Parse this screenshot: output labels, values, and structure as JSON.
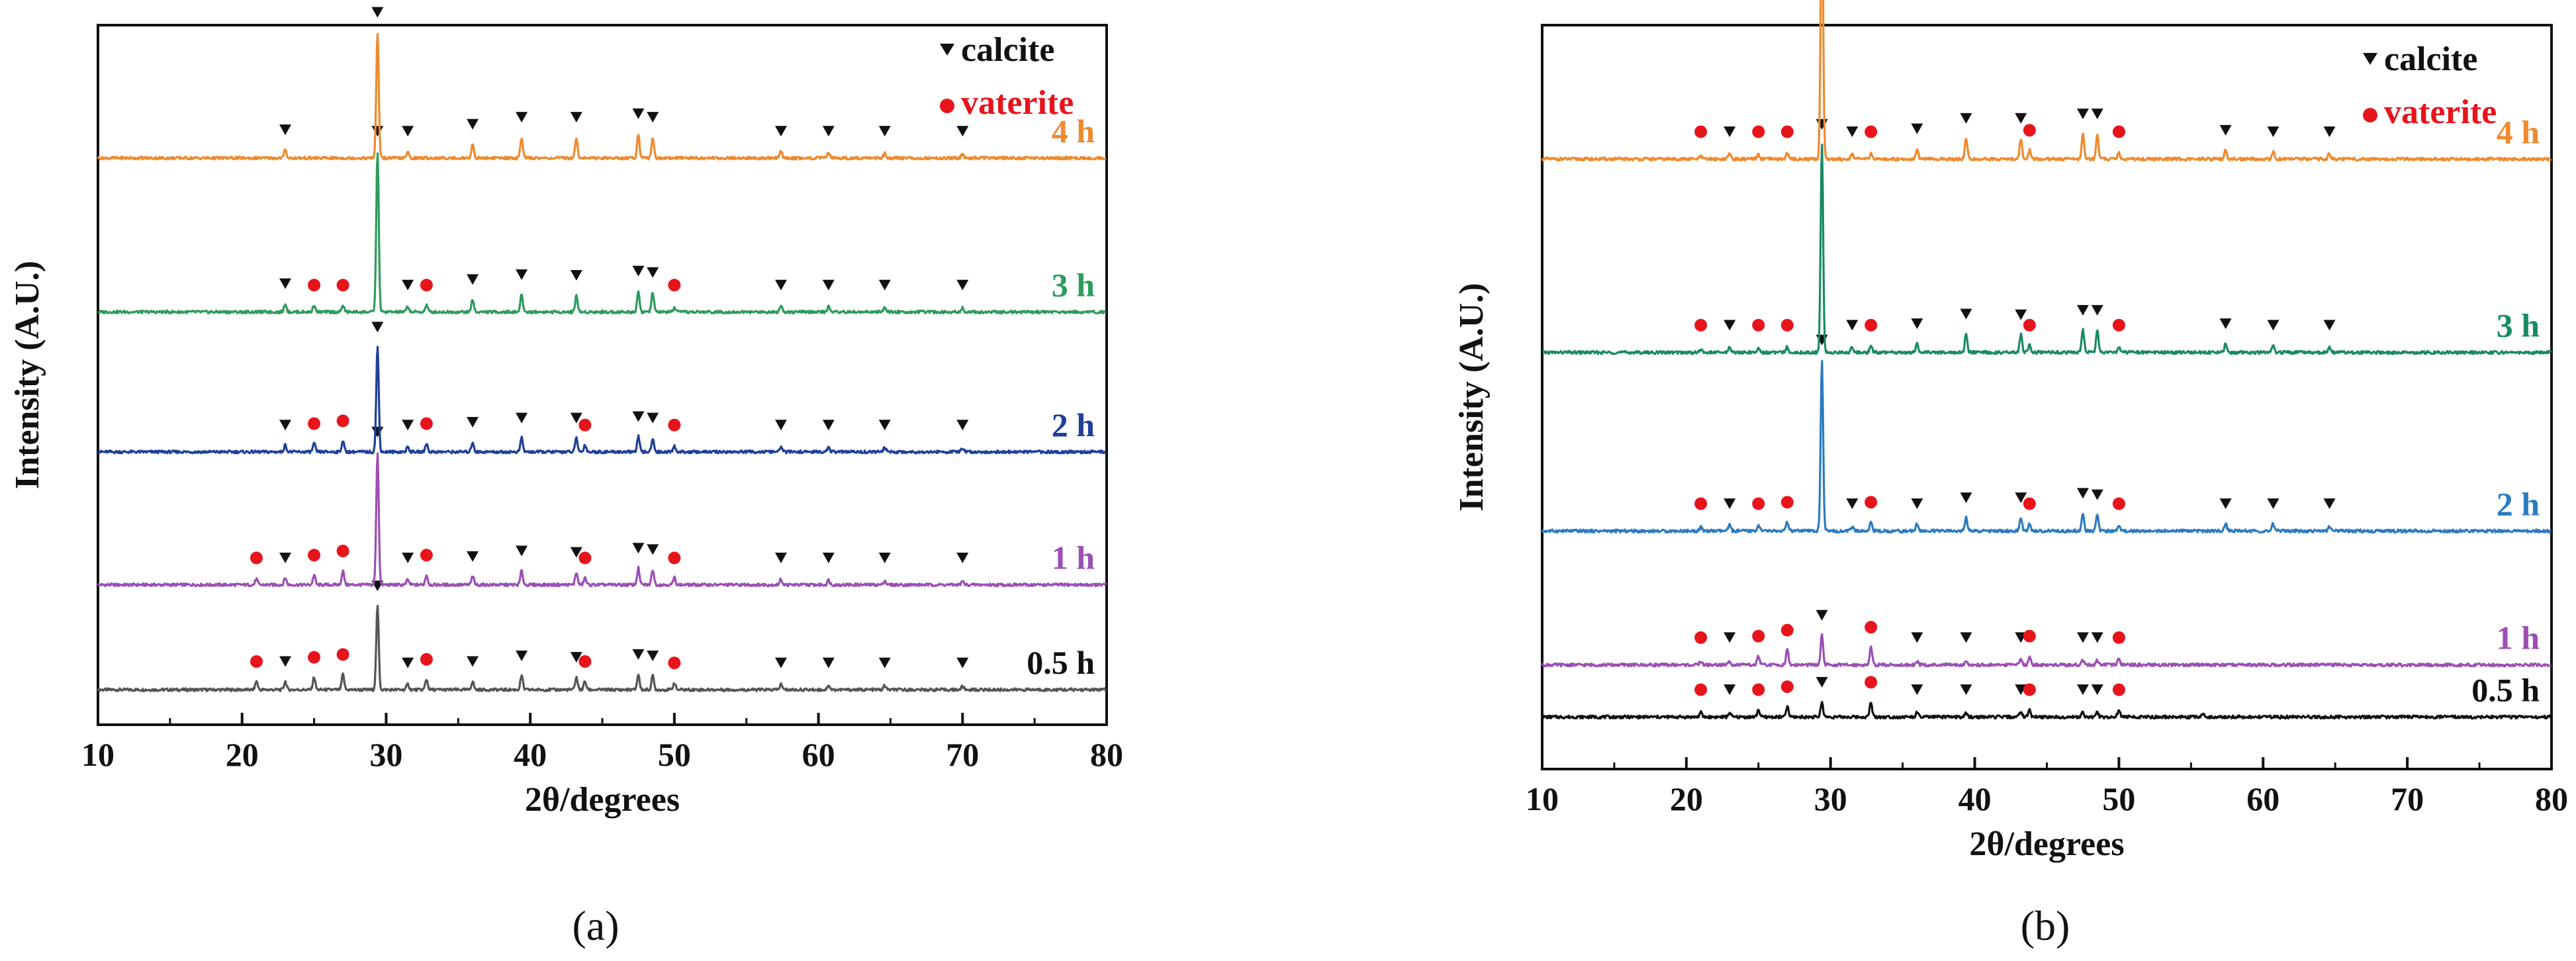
{
  "legend": {
    "calcite": {
      "label": "calcite",
      "color": "#111111"
    },
    "vaterite": {
      "label": "vaterite",
      "color": "#e8141c"
    }
  },
  "chart_data": [
    {
      "type": "line",
      "panel_label": "(a)",
      "xlabel": "2θ/degrees",
      "ylabel": "Intensity (A.U.)",
      "xlim": [
        10,
        80
      ],
      "xticks": [
        10,
        20,
        30,
        40,
        50,
        60,
        70,
        80
      ],
      "legend_position": "top-right",
      "series": [
        {
          "name": "0.5 h",
          "color": "#555555",
          "baseline": 0.05,
          "main_peak": 0.12,
          "peaks": [
            [
              21,
              0.012
            ],
            [
              23,
              0.012
            ],
            [
              25,
              0.018
            ],
            [
              27,
              0.022
            ],
            [
              29.4,
              0.12
            ],
            [
              31.5,
              0.008
            ],
            [
              32.8,
              0.015
            ],
            [
              36,
              0.012
            ],
            [
              39.4,
              0.02
            ],
            [
              43.2,
              0.018
            ],
            [
              43.8,
              0.012
            ],
            [
              47.5,
              0.022
            ],
            [
              48.5,
              0.02
            ],
            [
              50,
              0.01
            ],
            [
              57.4,
              0.008
            ],
            [
              60.7,
              0.007
            ],
            [
              64.6,
              0.006
            ],
            [
              70,
              0.005
            ]
          ],
          "calcite": [
            23,
            29.4,
            31.5,
            36,
            39.4,
            43.2,
            47.5,
            48.5,
            57.4,
            60.7,
            64.6,
            70
          ],
          "vaterite": [
            21,
            25,
            27,
            32.8,
            43.8,
            50
          ]
        },
        {
          "name": "1 h",
          "color": "#9b4fb4",
          "baseline": 0.2,
          "main_peak": 0.19,
          "peaks": [
            [
              21,
              0.008
            ],
            [
              23,
              0.01
            ],
            [
              25,
              0.014
            ],
            [
              27,
              0.02
            ],
            [
              29.4,
              0.19
            ],
            [
              31.5,
              0.007
            ],
            [
              32.8,
              0.014
            ],
            [
              36,
              0.012
            ],
            [
              39.4,
              0.02
            ],
            [
              43.2,
              0.018
            ],
            [
              43.8,
              0.01
            ],
            [
              47.5,
              0.024
            ],
            [
              48.5,
              0.022
            ],
            [
              50,
              0.01
            ],
            [
              57.4,
              0.008
            ],
            [
              60.7,
              0.007
            ],
            [
              64.6,
              0.006
            ],
            [
              70,
              0.005
            ]
          ],
          "calcite": [
            23,
            29.4,
            31.5,
            36,
            39.4,
            43.2,
            47.5,
            48.5,
            57.4,
            60.7,
            64.6,
            70
          ],
          "vaterite": [
            21,
            25,
            27,
            32.8,
            43.8,
            50
          ]
        },
        {
          "name": "2 h",
          "color": "#1f3f99",
          "baseline": 0.39,
          "main_peak": 0.15,
          "peaks": [
            [
              23,
              0.01
            ],
            [
              25,
              0.012
            ],
            [
              27,
              0.016
            ],
            [
              29.4,
              0.15
            ],
            [
              31.5,
              0.007
            ],
            [
              32.8,
              0.012
            ],
            [
              36,
              0.014
            ],
            [
              39.4,
              0.02
            ],
            [
              43.2,
              0.02
            ],
            [
              43.8,
              0.01
            ],
            [
              47.5,
              0.022
            ],
            [
              48.5,
              0.02
            ],
            [
              50,
              0.008
            ],
            [
              57.4,
              0.008
            ],
            [
              60.7,
              0.007
            ],
            [
              64.6,
              0.006
            ],
            [
              70,
              0.005
            ]
          ],
          "calcite": [
            23,
            29.4,
            31.5,
            36,
            39.4,
            43.2,
            47.5,
            48.5,
            57.4,
            60.7,
            64.6,
            70
          ],
          "vaterite": [
            25,
            27,
            32.8,
            43.8,
            50
          ]
        },
        {
          "name": "3 h",
          "color": "#2e9b5e",
          "baseline": 0.59,
          "main_peak": 0.23,
          "peaks": [
            [
              23,
              0.012
            ],
            [
              25,
              0.01
            ],
            [
              27,
              0.01
            ],
            [
              29.4,
              0.23
            ],
            [
              31.5,
              0.008
            ],
            [
              32.8,
              0.01
            ],
            [
              36,
              0.018
            ],
            [
              39.4,
              0.025
            ],
            [
              43.2,
              0.024
            ],
            [
              47.5,
              0.03
            ],
            [
              48.5,
              0.028
            ],
            [
              50,
              0.006
            ],
            [
              57.4,
              0.01
            ],
            [
              60.7,
              0.008
            ],
            [
              64.6,
              0.007
            ],
            [
              70,
              0.006
            ]
          ],
          "calcite": [
            23,
            29.4,
            31.5,
            36,
            39.4,
            43.2,
            47.5,
            48.5,
            57.4,
            60.7,
            64.6,
            70
          ],
          "vaterite": [
            25,
            27,
            32.8,
            50
          ]
        },
        {
          "name": "4 h",
          "color": "#ef8a2e",
          "baseline": 0.81,
          "main_peak": 0.18,
          "peaks": [
            [
              23,
              0.012
            ],
            [
              29.4,
              0.18
            ],
            [
              31.5,
              0.008
            ],
            [
              36,
              0.02
            ],
            [
              39.4,
              0.03
            ],
            [
              43.2,
              0.03
            ],
            [
              47.5,
              0.035
            ],
            [
              48.5,
              0.03
            ],
            [
              57.4,
              0.01
            ],
            [
              60.7,
              0.008
            ],
            [
              64.6,
              0.007
            ],
            [
              70,
              0.006
            ]
          ],
          "calcite": [
            23,
            29.4,
            31.5,
            36,
            39.4,
            43.2,
            47.5,
            48.5,
            57.4,
            60.7,
            64.6,
            70
          ],
          "vaterite": []
        }
      ]
    },
    {
      "type": "line",
      "panel_label": "(b)",
      "xlabel": "2θ/degrees",
      "ylabel": "Intensity (A.U.)",
      "xlim": [
        10,
        80
      ],
      "xticks": [
        10,
        20,
        30,
        40,
        50,
        60,
        70,
        80
      ],
      "legend_position": "top-right",
      "series": [
        {
          "name": "0.5 h",
          "color": "#111111",
          "baseline": 0.07,
          "main_peak": 0.02,
          "peaks": [
            [
              21,
              0.006
            ],
            [
              23,
              0.006
            ],
            [
              25,
              0.01
            ],
            [
              27,
              0.014
            ],
            [
              29.4,
              0.02
            ],
            [
              32.8,
              0.02
            ],
            [
              36,
              0.006
            ],
            [
              39.4,
              0.005
            ],
            [
              43.2,
              0.008
            ],
            [
              43.8,
              0.01
            ],
            [
              47.5,
              0.006
            ],
            [
              48.5,
              0.006
            ],
            [
              50,
              0.01
            ],
            [
              55.8,
              0.004
            ]
          ],
          "calcite": [
            23,
            29.4,
            36,
            39.4,
            43.2,
            47.5,
            48.5
          ],
          "vaterite": [
            21,
            25,
            27,
            32.8,
            43.8,
            50
          ]
        },
        {
          "name": "1 h",
          "color": "#9b4fb4",
          "baseline": 0.14,
          "main_peak": 0.04,
          "peaks": [
            [
              21,
              0.005
            ],
            [
              23,
              0.006
            ],
            [
              25,
              0.012
            ],
            [
              27,
              0.02
            ],
            [
              29.4,
              0.04
            ],
            [
              32.8,
              0.024
            ],
            [
              36,
              0.006
            ],
            [
              39.4,
              0.006
            ],
            [
              43.2,
              0.008
            ],
            [
              43.8,
              0.012
            ],
            [
              47.5,
              0.006
            ],
            [
              48.5,
              0.006
            ],
            [
              50,
              0.01
            ]
          ],
          "calcite": [
            23,
            29.4,
            36,
            39.4,
            43.2,
            47.5,
            48.5
          ],
          "vaterite": [
            21,
            25,
            27,
            32.8,
            43.8,
            50
          ]
        },
        {
          "name": "2 h",
          "color": "#2c7bc0",
          "baseline": 0.32,
          "main_peak": 0.23,
          "peaks": [
            [
              21,
              0.005
            ],
            [
              23,
              0.008
            ],
            [
              25,
              0.008
            ],
            [
              27,
              0.012
            ],
            [
              29.4,
              0.23
            ],
            [
              31.5,
              0.006
            ],
            [
              32.8,
              0.012
            ],
            [
              36,
              0.01
            ],
            [
              39.4,
              0.018
            ],
            [
              43.2,
              0.018
            ],
            [
              43.8,
              0.01
            ],
            [
              47.5,
              0.024
            ],
            [
              48.5,
              0.022
            ],
            [
              50,
              0.008
            ],
            [
              57.4,
              0.01
            ],
            [
              60.7,
              0.01
            ],
            [
              64.6,
              0.006
            ]
          ],
          "calcite": [
            23,
            29.4,
            31.5,
            36,
            39.4,
            43.2,
            47.5,
            48.5,
            57.4,
            60.7,
            64.6
          ],
          "vaterite": [
            21,
            25,
            27,
            32.8,
            43.8,
            50
          ]
        },
        {
          "name": "3 h",
          "color": "#1a8a66",
          "baseline": 0.56,
          "main_peak": 0.28,
          "peaks": [
            [
              21,
              0.004
            ],
            [
              23,
              0.008
            ],
            [
              25,
              0.006
            ],
            [
              27,
              0.008
            ],
            [
              29.4,
              0.28
            ],
            [
              31.5,
              0.008
            ],
            [
              32.8,
              0.01
            ],
            [
              36,
              0.012
            ],
            [
              39.4,
              0.025
            ],
            [
              43.2,
              0.024
            ],
            [
              43.8,
              0.01
            ],
            [
              47.5,
              0.03
            ],
            [
              48.5,
              0.03
            ],
            [
              50,
              0.008
            ],
            [
              57.4,
              0.012
            ],
            [
              60.7,
              0.01
            ],
            [
              64.6,
              0.008
            ]
          ],
          "calcite": [
            23,
            29.4,
            31.5,
            36,
            39.4,
            43.2,
            47.5,
            48.5,
            57.4,
            60.7,
            64.6
          ],
          "vaterite": [
            21,
            25,
            27,
            32.8,
            43.8,
            50
          ]
        },
        {
          "name": "4 h",
          "color": "#ef8a2e",
          "baseline": 0.82,
          "main_peak": 0.36,
          "peaks": [
            [
              21,
              0.004
            ],
            [
              23,
              0.008
            ],
            [
              25,
              0.006
            ],
            [
              27,
              0.008
            ],
            [
              29.4,
              0.36
            ],
            [
              31.5,
              0.008
            ],
            [
              32.8,
              0.008
            ],
            [
              36,
              0.014
            ],
            [
              39.4,
              0.028
            ],
            [
              43.2,
              0.028
            ],
            [
              43.8,
              0.012
            ],
            [
              47.5,
              0.034
            ],
            [
              48.5,
              0.034
            ],
            [
              50,
              0.008
            ],
            [
              57.4,
              0.012
            ],
            [
              60.7,
              0.01
            ],
            [
              64.6,
              0.008
            ]
          ],
          "calcite": [
            23,
            29.4,
            31.5,
            36,
            39.4,
            43.2,
            47.5,
            48.5,
            57.4,
            60.7,
            64.6
          ],
          "vaterite": [
            21,
            25,
            27,
            32.8,
            43.8,
            50
          ]
        }
      ]
    }
  ]
}
